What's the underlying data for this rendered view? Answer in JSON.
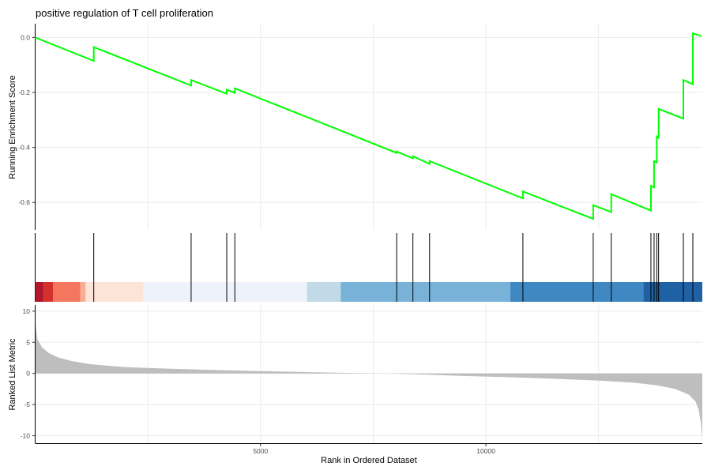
{
  "chart_data": {
    "type": "line",
    "title": "positive regulation of T cell proliferation",
    "xlabel": "Rank in Ordered Dataset",
    "x_ticks": [
      5000,
      10000
    ],
    "x_range": [
      0,
      14800
    ],
    "grid": true,
    "legend": "none",
    "running_enrichment": {
      "ylabel": "Running Enrichment Score",
      "ylim": [
        -0.7,
        0.05
      ],
      "y_ticks": [
        0.0,
        -0.2,
        -0.4,
        -0.6
      ],
      "line_color": "#00ff00",
      "points": [
        [
          0,
          0.0
        ],
        [
          1300,
          -0.085
        ],
        [
          1300,
          -0.035
        ],
        [
          3460,
          -0.175
        ],
        [
          3460,
          -0.155
        ],
        [
          4250,
          -0.205
        ],
        [
          4250,
          -0.19
        ],
        [
          4430,
          -0.202
        ],
        [
          4430,
          -0.185
        ],
        [
          8020,
          -0.42
        ],
        [
          8020,
          -0.415
        ],
        [
          8380,
          -0.44
        ],
        [
          8380,
          -0.432
        ],
        [
          8750,
          -0.46
        ],
        [
          8750,
          -0.45
        ],
        [
          10820,
          -0.585
        ],
        [
          10820,
          -0.56
        ],
        [
          12380,
          -0.66
        ],
        [
          12380,
          -0.61
        ],
        [
          12780,
          -0.635
        ],
        [
          12780,
          -0.57
        ],
        [
          13660,
          -0.63
        ],
        [
          13660,
          -0.54
        ],
        [
          13730,
          -0.545
        ],
        [
          13730,
          -0.45
        ],
        [
          13790,
          -0.455
        ],
        [
          13790,
          -0.36
        ],
        [
          13830,
          -0.365
        ],
        [
          13830,
          -0.26
        ],
        [
          14380,
          -0.295
        ],
        [
          14380,
          -0.155
        ],
        [
          14590,
          -0.17
        ],
        [
          14590,
          0.015
        ],
        [
          14780,
          0.005
        ]
      ]
    },
    "hits": [
      1300,
      3460,
      4250,
      4430,
      8020,
      8380,
      8750,
      10820,
      12380,
      12780,
      13660,
      13730,
      13790,
      13830,
      14380,
      14590
    ],
    "rank_color_bands": [
      {
        "start": 0,
        "end": 190,
        "color": "#b2182b"
      },
      {
        "start": 190,
        "end": 400,
        "color": "#d6302d"
      },
      {
        "start": 400,
        "end": 1000,
        "color": "#f4765e"
      },
      {
        "start": 1000,
        "end": 1120,
        "color": "#f9ad93"
      },
      {
        "start": 1120,
        "end": 2400,
        "color": "#fde4d8"
      },
      {
        "start": 2400,
        "end": 6030,
        "color": "#eef3fb"
      },
      {
        "start": 6030,
        "end": 6780,
        "color": "#c2d9e8"
      },
      {
        "start": 6780,
        "end": 10540,
        "color": "#78b2d8"
      },
      {
        "start": 10540,
        "end": 13490,
        "color": "#3f88c2"
      },
      {
        "start": 13490,
        "end": 14800,
        "color": "#1e61a5"
      }
    ],
    "ranked_metric": {
      "ylabel": "Ranked List Metric",
      "ylim": [
        -11.2,
        11
      ],
      "y_ticks": [
        10,
        5,
        0,
        -5,
        -10
      ],
      "fill_color": "#bebebe",
      "points": [
        [
          0,
          8.5
        ],
        [
          50,
          5.5
        ],
        [
          150,
          4.2
        ],
        [
          300,
          3.3
        ],
        [
          500,
          2.6
        ],
        [
          800,
          2.0
        ],
        [
          1200,
          1.5
        ],
        [
          2000,
          1.0
        ],
        [
          3000,
          0.75
        ],
        [
          4000,
          0.55
        ],
        [
          5000,
          0.38
        ],
        [
          6000,
          0.22
        ],
        [
          7000,
          0.08
        ],
        [
          7800,
          0.0
        ],
        [
          8500,
          -0.15
        ],
        [
          9500,
          -0.4
        ],
        [
          10500,
          -0.6
        ],
        [
          11500,
          -0.85
        ],
        [
          12500,
          -1.15
        ],
        [
          13300,
          -1.5
        ],
        [
          13800,
          -1.9
        ],
        [
          14200,
          -2.5
        ],
        [
          14500,
          -3.4
        ],
        [
          14650,
          -4.5
        ],
        [
          14720,
          -5.8
        ],
        [
          14770,
          -8.0
        ],
        [
          14800,
          -11.0
        ]
      ]
    }
  }
}
